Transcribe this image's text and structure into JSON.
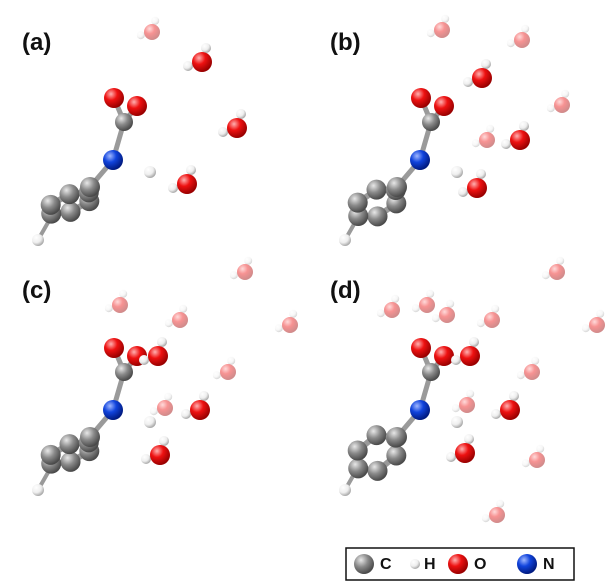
{
  "panels": [
    {
      "label": "(a)"
    },
    {
      "label": "(b)"
    },
    {
      "label": "(c)"
    },
    {
      "label": "(d)"
    }
  ],
  "legend": [
    {
      "label": "C"
    },
    {
      "label": "H"
    },
    {
      "label": "O"
    },
    {
      "label": "N"
    }
  ]
}
